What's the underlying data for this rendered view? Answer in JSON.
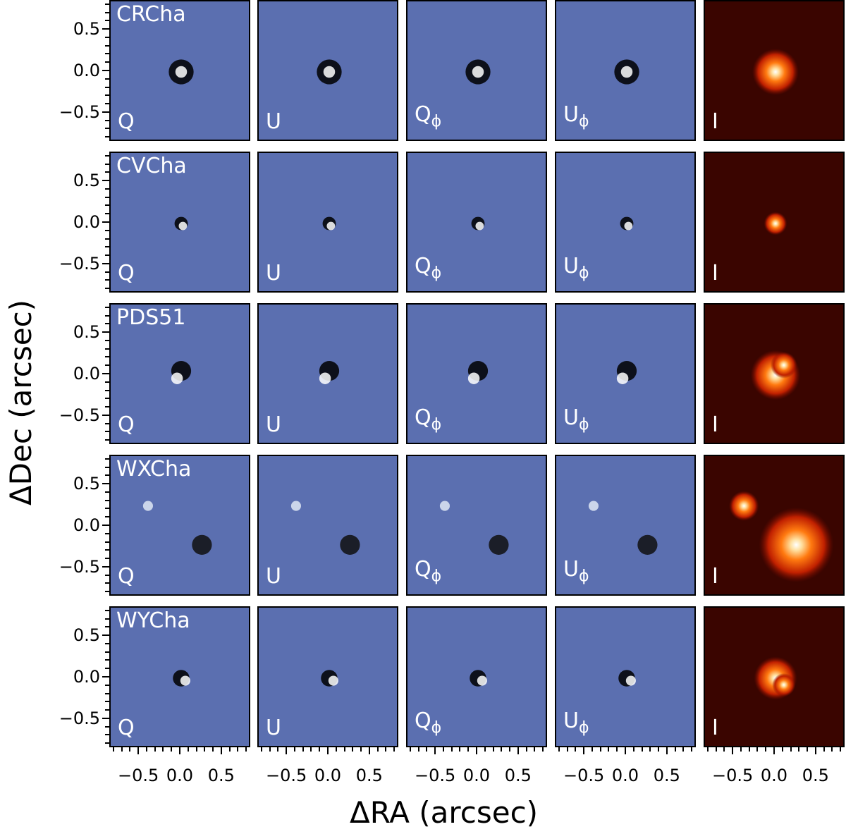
{
  "figure": {
    "xlabel": "ΔRA (arcsec)",
    "ylabel": "ΔDec (arcsec)",
    "y_ticks": [
      "0.5",
      "0.0",
      "−0.5"
    ],
    "y_tick_values": [
      0.5,
      0.0,
      -0.5
    ],
    "x_ticks": [
      "−0.5",
      "0.0",
      "0.5"
    ],
    "x_tick_values": [
      -0.5,
      0.0,
      0.5
    ],
    "axis_range": [
      -0.85,
      0.85
    ]
  },
  "columns": [
    {
      "label": "Q",
      "colormap": "diverging-blue",
      "sub": ""
    },
    {
      "label": "U",
      "colormap": "diverging-blue",
      "sub": ""
    },
    {
      "label": "Q",
      "colormap": "diverging-blue",
      "sub": "ϕ"
    },
    {
      "label": "U",
      "colormap": "diverging-blue",
      "sub": "ϕ"
    },
    {
      "label": "I",
      "colormap": "hot",
      "sub": ""
    }
  ],
  "rows": [
    {
      "name": "CRCha"
    },
    {
      "name": "CVCha"
    },
    {
      "name": "PDS51"
    },
    {
      "name": "WXCha"
    },
    {
      "name": "WYCha"
    }
  ],
  "colors": {
    "diverging_bg": "#5b6fb0",
    "hot_bg": "#3a0500"
  }
}
